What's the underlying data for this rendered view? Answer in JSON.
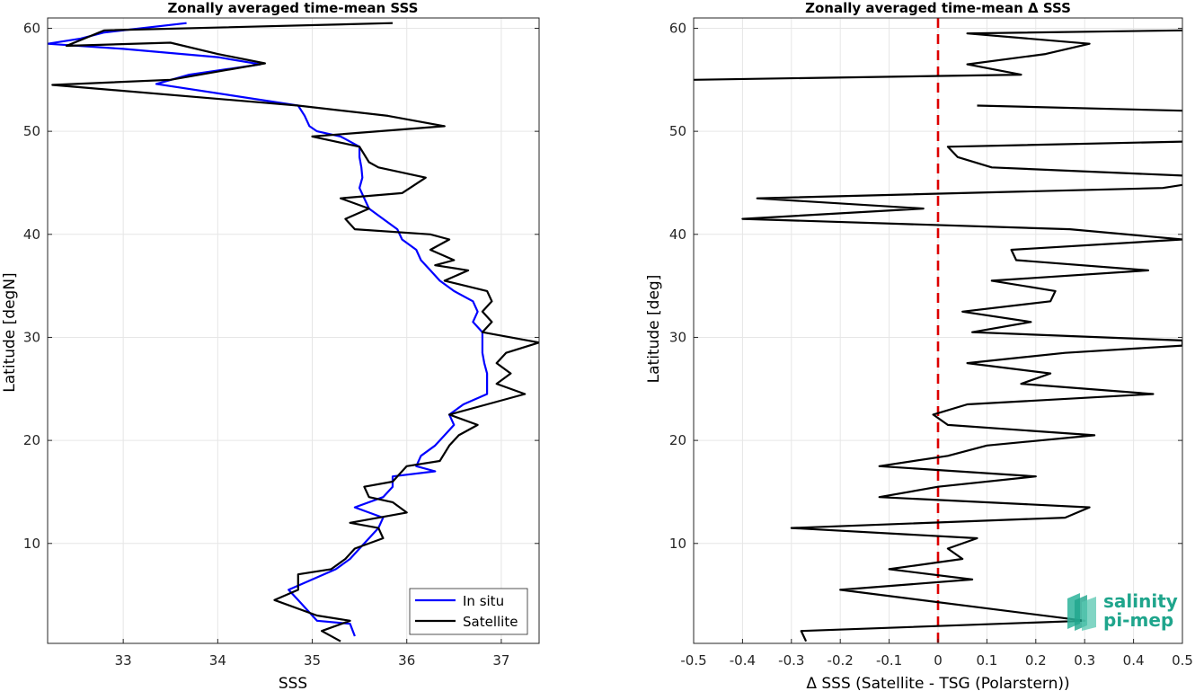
{
  "chart_data": [
    {
      "type": "line",
      "title": "Zonally averaged time-mean SSS",
      "xlabel": "SSS",
      "ylabel": "Latitude [degN]",
      "xlim": [
        32.2,
        37.4
      ],
      "ylim": [
        0.3,
        61
      ],
      "xticks": [
        33,
        34,
        35,
        36,
        37
      ],
      "yticks": [
        10,
        20,
        30,
        40,
        50,
        60
      ],
      "grid": true,
      "legend": "bottom-right",
      "series": [
        {
          "name": "In situ",
          "color": "#0000ff",
          "points": [
            [
              33.67,
              60.5
            ],
            [
              32.8,
              59.6
            ],
            [
              32.55,
              59.0
            ],
            [
              32.2,
              58.5
            ],
            [
              33.0,
              58.0
            ],
            [
              34.0,
              57.2
            ],
            [
              34.45,
              56.5
            ],
            [
              33.7,
              55.5
            ],
            [
              33.35,
              54.6
            ],
            [
              34.85,
              52.5
            ],
            [
              34.92,
              51.5
            ],
            [
              34.97,
              50.5
            ],
            [
              35.05,
              50.0
            ],
            [
              35.3,
              49.5
            ],
            [
              35.5,
              48.5
            ],
            [
              35.5,
              47.5
            ],
            [
              35.52,
              46.5
            ],
            [
              35.53,
              45.5
            ],
            [
              35.5,
              44.5
            ],
            [
              35.55,
              43.5
            ],
            [
              35.6,
              42.5
            ],
            [
              35.75,
              41.5
            ],
            [
              35.9,
              40.5
            ],
            [
              35.95,
              39.5
            ],
            [
              36.1,
              38.5
            ],
            [
              36.15,
              37.5
            ],
            [
              36.25,
              36.5
            ],
            [
              36.35,
              35.5
            ],
            [
              36.5,
              34.5
            ],
            [
              36.7,
              33.5
            ],
            [
              36.75,
              32.5
            ],
            [
              36.7,
              31.5
            ],
            [
              36.8,
              30.5
            ],
            [
              36.8,
              29.5
            ],
            [
              36.8,
              28.5
            ],
            [
              36.82,
              27.5
            ],
            [
              36.85,
              26.5
            ],
            [
              36.85,
              25.5
            ],
            [
              36.85,
              24.5
            ],
            [
              36.6,
              23.5
            ],
            [
              36.45,
              22.5
            ],
            [
              36.5,
              21.5
            ],
            [
              36.4,
              20.5
            ],
            [
              36.3,
              19.5
            ],
            [
              36.15,
              18.5
            ],
            [
              36.1,
              17.5
            ],
            [
              36.3,
              17.0
            ],
            [
              35.85,
              16.5
            ],
            [
              35.85,
              15.5
            ],
            [
              35.75,
              14.5
            ],
            [
              35.45,
              13.5
            ],
            [
              35.75,
              12.5
            ],
            [
              35.7,
              11.5
            ],
            [
              35.6,
              10.5
            ],
            [
              35.5,
              9.5
            ],
            [
              35.4,
              8.5
            ],
            [
              35.25,
              7.5
            ],
            [
              35.0,
              6.5
            ],
            [
              34.75,
              5.5
            ],
            [
              34.85,
              4.5
            ],
            [
              34.95,
              3.5
            ],
            [
              35.05,
              2.5
            ],
            [
              35.4,
              2.2
            ],
            [
              35.45,
              1.0
            ]
          ]
        },
        {
          "name": "Satellite",
          "color": "#000000",
          "points": [
            [
              35.85,
              60.5
            ],
            [
              32.8,
              59.8
            ],
            [
              32.4,
              58.3
            ],
            [
              33.5,
              58.6
            ],
            [
              34.0,
              57.5
            ],
            [
              34.5,
              56.6
            ],
            [
              33.5,
              55.0
            ],
            [
              32.25,
              54.5
            ],
            [
              34.85,
              52.5
            ],
            [
              35.8,
              51.5
            ],
            [
              36.4,
              50.5
            ],
            [
              35.0,
              49.5
            ],
            [
              35.5,
              48.5
            ],
            [
              35.6,
              47.0
            ],
            [
              35.7,
              46.5
            ],
            [
              36.2,
              45.5
            ],
            [
              35.95,
              44.0
            ],
            [
              35.3,
              43.5
            ],
            [
              35.6,
              42.5
            ],
            [
              35.35,
              41.5
            ],
            [
              35.45,
              40.5
            ],
            [
              36.25,
              40.0
            ],
            [
              36.45,
              39.5
            ],
            [
              36.25,
              38.5
            ],
            [
              36.5,
              37.5
            ],
            [
              36.3,
              37.0
            ],
            [
              36.65,
              36.5
            ],
            [
              36.4,
              35.5
            ],
            [
              36.85,
              34.5
            ],
            [
              36.9,
              33.5
            ],
            [
              36.8,
              32.5
            ],
            [
              36.9,
              31.5
            ],
            [
              36.8,
              30.5
            ],
            [
              37.4,
              29.5
            ],
            [
              37.05,
              28.5
            ],
            [
              36.95,
              27.5
            ],
            [
              37.1,
              26.5
            ],
            [
              36.95,
              25.5
            ],
            [
              37.25,
              24.5
            ],
            [
              36.85,
              23.5
            ],
            [
              36.45,
              22.5
            ],
            [
              36.75,
              21.5
            ],
            [
              36.55,
              20.5
            ],
            [
              36.45,
              19.5
            ],
            [
              36.35,
              18.0
            ],
            [
              36.0,
              17.5
            ],
            [
              35.85,
              16.0
            ],
            [
              35.55,
              15.5
            ],
            [
              35.6,
              14.5
            ],
            [
              35.85,
              14.0
            ],
            [
              36.0,
              13.0
            ],
            [
              35.4,
              12.0
            ],
            [
              35.7,
              11.5
            ],
            [
              35.75,
              10.5
            ],
            [
              35.45,
              9.5
            ],
            [
              35.35,
              8.5
            ],
            [
              35.2,
              7.5
            ],
            [
              34.85,
              7.0
            ],
            [
              34.85,
              5.5
            ],
            [
              34.6,
              4.5
            ],
            [
              35.05,
              3.0
            ],
            [
              35.4,
              2.5
            ],
            [
              35.1,
              1.5
            ],
            [
              35.3,
              0.5
            ]
          ]
        }
      ]
    },
    {
      "type": "line",
      "title": "Zonally averaged time-mean Δ SSS",
      "xlabel": "Δ SSS (Satellite - TSG (Polarstern))",
      "ylabel": "Latitude [deg]",
      "xlim": [
        -0.5,
        0.5
      ],
      "ylim": [
        0.3,
        61
      ],
      "xticks": [
        "-0.5",
        "-0.4",
        "-0.3",
        "-0.2",
        "-0.1",
        "0",
        "0.1",
        "0.2",
        "0.3",
        "0.4",
        "0.5"
      ],
      "yticks": [
        10,
        20,
        30,
        40,
        50,
        60
      ],
      "grid": true,
      "zero_line_color": "#dd0000",
      "segments": [
        {
          "color": "#000000",
          "points": [
            [
              0.5,
              59.8
            ],
            [
              0.06,
              59.5
            ],
            [
              0.31,
              58.5
            ],
            [
              0.22,
              57.5
            ],
            [
              0.06,
              56.5
            ],
            [
              0.17,
              55.5
            ],
            [
              -0.5,
              55.0
            ]
          ]
        },
        {
          "color": "#000000",
          "points": [
            [
              0.08,
              52.5
            ],
            [
              0.5,
              52.0
            ]
          ]
        },
        {
          "color": "#000000",
          "points": [
            [
              0.5,
              49.0
            ],
            [
              0.02,
              48.5
            ],
            [
              0.04,
              47.5
            ],
            [
              0.11,
              46.5
            ],
            [
              0.5,
              45.7
            ]
          ]
        },
        {
          "color": "#000000",
          "points": [
            [
              0.5,
              44.8
            ],
            [
              0.46,
              44.5
            ],
            [
              -0.37,
              43.5
            ],
            [
              -0.03,
              42.5
            ],
            [
              -0.4,
              41.5
            ],
            [
              0.27,
              40.5
            ],
            [
              0.5,
              39.5
            ],
            [
              0.15,
              38.5
            ],
            [
              0.16,
              37.5
            ],
            [
              0.43,
              36.5
            ],
            [
              0.11,
              35.5
            ],
            [
              0.24,
              34.5
            ],
            [
              0.23,
              33.5
            ],
            [
              0.05,
              32.5
            ],
            [
              0.19,
              31.5
            ],
            [
              0.07,
              30.5
            ],
            [
              0.5,
              29.7
            ],
            [
              0.5,
              29.2
            ],
            [
              0.26,
              28.5
            ],
            [
              0.06,
              27.5
            ],
            [
              0.23,
              26.5
            ],
            [
              0.17,
              25.5
            ],
            [
              0.44,
              24.5
            ],
            [
              0.06,
              23.5
            ],
            [
              -0.01,
              22.5
            ],
            [
              0.02,
              21.5
            ],
            [
              0.32,
              20.5
            ],
            [
              0.1,
              19.5
            ],
            [
              0.02,
              18.5
            ],
            [
              -0.12,
              17.5
            ],
            [
              0.2,
              16.5
            ],
            [
              0.0,
              15.5
            ],
            [
              -0.12,
              14.5
            ],
            [
              0.31,
              13.5
            ],
            [
              0.26,
              12.5
            ],
            [
              -0.3,
              11.5
            ],
            [
              0.08,
              10.5
            ],
            [
              0.02,
              9.5
            ],
            [
              0.05,
              8.5
            ],
            [
              -0.1,
              7.5
            ],
            [
              0.07,
              6.5
            ],
            [
              -0.2,
              5.5
            ],
            [
              0.3,
              2.5
            ],
            [
              -0.28,
              1.5
            ],
            [
              -0.27,
              0.5
            ]
          ]
        }
      ]
    }
  ],
  "logo": {
    "line1": "salinity",
    "line2": "pi-mep"
  }
}
